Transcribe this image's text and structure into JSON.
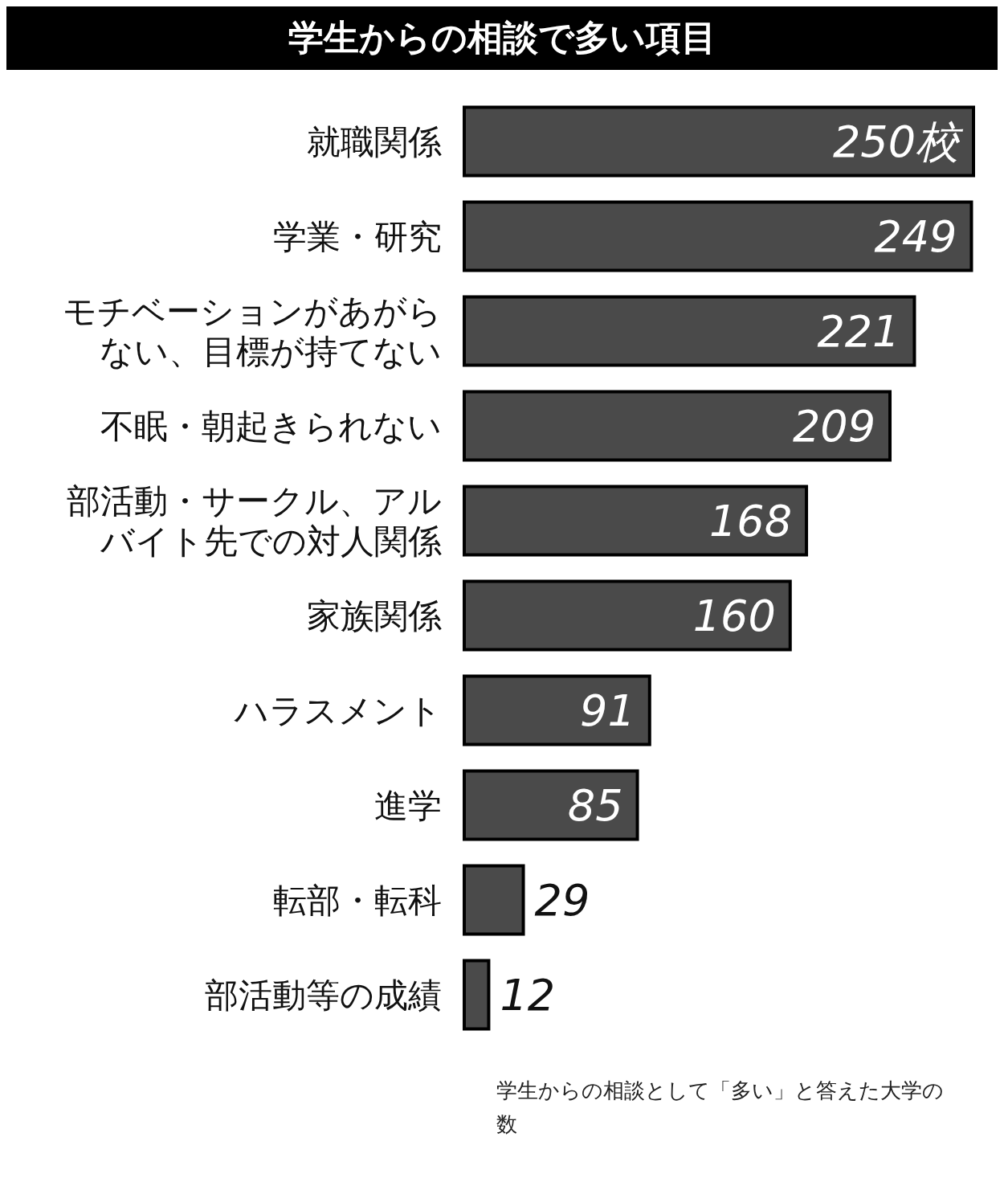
{
  "chart_data": {
    "type": "bar",
    "orientation": "horizontal",
    "title": "学生からの相談で多い項目",
    "categories": [
      "就職関係",
      "学業・研究",
      "モチベーションがあがらない、目標が持てない",
      "不眠・朝起きられない",
      "部活動・サークル、アルバイト先での対人関係",
      "家族関係",
      "ハラスメント",
      "進学",
      "転部・転科",
      "部活動等の成績"
    ],
    "values": [
      250,
      249,
      221,
      209,
      168,
      160,
      91,
      85,
      29,
      12
    ],
    "value_labels": [
      "250校",
      "249",
      "221",
      "209",
      "168",
      "160",
      "91",
      "85",
      "29",
      "12"
    ],
    "color": "#4a4a4a",
    "tick_labels": "y",
    "annotations": [
      "学生からの相談として「多い」と答えた大学の数"
    ]
  }
}
